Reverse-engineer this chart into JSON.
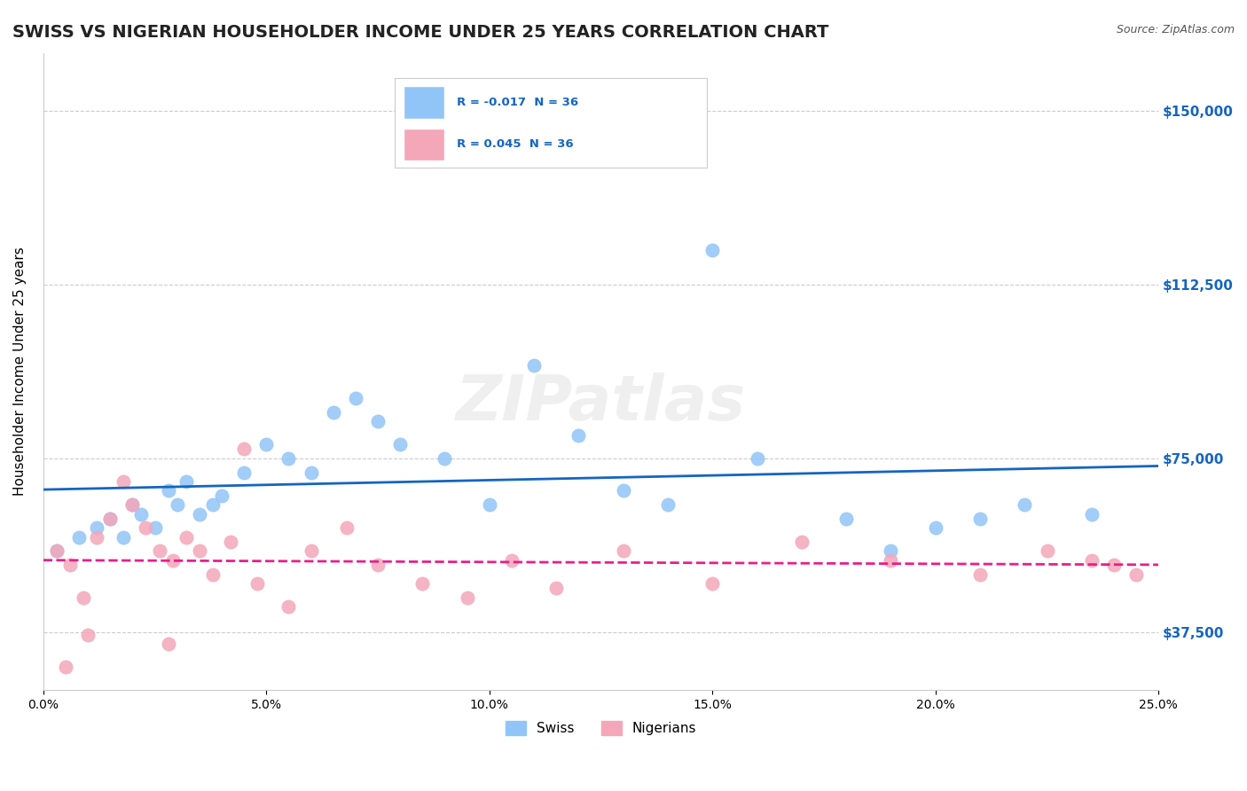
{
  "title": "SWISS VS NIGERIAN HOUSEHOLDER INCOME UNDER 25 YEARS CORRELATION CHART",
  "source": "Source: ZipAtlas.com",
  "ylabel": "Householder Income Under 25 years",
  "xlabel_ticks": [
    "0.0%",
    "5.0%",
    "10.0%",
    "15.0%",
    "20.0%",
    "25.0%"
  ],
  "xlabel_vals": [
    0.0,
    5.0,
    10.0,
    15.0,
    20.0,
    25.0
  ],
  "ylim": [
    25000,
    162500
  ],
  "xlim": [
    0.0,
    25.0
  ],
  "yticks": [
    37500,
    75000,
    112500,
    150000
  ],
  "ytick_labels": [
    "$37,500",
    "$75,000",
    "$112,500",
    "$150,000"
  ],
  "swiss_color": "#92c5f7",
  "nigerian_color": "#f4a7b9",
  "swiss_line_color": "#1565c0",
  "nigerian_line_color": "#e91e8c",
  "legend_swiss_label": "Swiss",
  "legend_nigerian_label": "Nigerians",
  "swiss_R": "-0.017",
  "swiss_N": "36",
  "nigerian_R": "0.045",
  "nigerian_N": "36",
  "swiss_x": [
    0.3,
    0.8,
    1.2,
    1.5,
    1.8,
    2.0,
    2.2,
    2.5,
    2.8,
    3.0,
    3.2,
    3.5,
    3.8,
    4.0,
    4.5,
    5.0,
    5.5,
    6.0,
    6.5,
    7.0,
    7.5,
    8.0,
    9.0,
    10.0,
    11.0,
    12.0,
    13.0,
    14.0,
    15.0,
    16.0,
    18.0,
    19.0,
    20.0,
    21.0,
    22.0,
    23.5
  ],
  "swiss_y": [
    55000,
    58000,
    60000,
    62000,
    58000,
    65000,
    63000,
    60000,
    68000,
    65000,
    70000,
    63000,
    65000,
    67000,
    72000,
    78000,
    75000,
    72000,
    85000,
    88000,
    83000,
    78000,
    75000,
    65000,
    95000,
    80000,
    68000,
    65000,
    120000,
    75000,
    62000,
    55000,
    60000,
    62000,
    65000,
    63000
  ],
  "nigerian_x": [
    0.3,
    0.6,
    0.9,
    1.2,
    1.5,
    1.8,
    2.0,
    2.3,
    2.6,
    2.9,
    3.2,
    3.5,
    3.8,
    4.2,
    4.8,
    5.5,
    6.0,
    6.8,
    7.5,
    8.5,
    9.5,
    10.5,
    11.5,
    13.0,
    15.0,
    17.0,
    19.0,
    21.0,
    22.5,
    23.5,
    24.0,
    24.5,
    0.5,
    1.0,
    2.8,
    4.5
  ],
  "nigerian_y": [
    55000,
    52000,
    45000,
    58000,
    62000,
    70000,
    65000,
    60000,
    55000,
    53000,
    58000,
    55000,
    50000,
    57000,
    48000,
    43000,
    55000,
    60000,
    52000,
    48000,
    45000,
    53000,
    47000,
    55000,
    48000,
    57000,
    53000,
    50000,
    55000,
    53000,
    52000,
    50000,
    30000,
    37000,
    35000,
    77000
  ],
  "background_color": "#ffffff",
  "grid_color": "#cccccc",
  "watermark_text": "ZIPatlas",
  "title_fontsize": 14,
  "axis_label_fontsize": 11,
  "tick_fontsize": 10
}
